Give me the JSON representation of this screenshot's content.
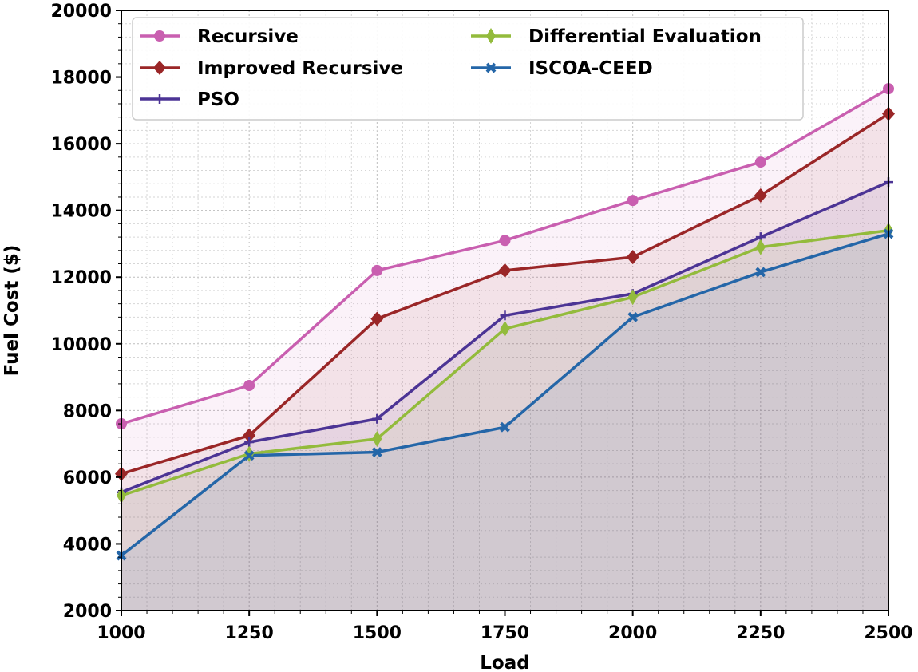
{
  "chart_data": {
    "type": "line",
    "title": "",
    "xlabel": "Load",
    "ylabel": "Fuel Cost ($)",
    "x": [
      1000,
      1250,
      1500,
      1750,
      2000,
      2250,
      2500
    ],
    "xticks": [
      "1000",
      "1250",
      "1500",
      "1750",
      "2000",
      "2250",
      "2500"
    ],
    "yticks": [
      "2000",
      "4000",
      "6000",
      "8000",
      "10000",
      "12000",
      "14000",
      "16000",
      "18000",
      "20000"
    ],
    "xlim": [
      1000,
      2500
    ],
    "ylim": [
      2000,
      20000
    ],
    "grid": true,
    "legend_position": "top-left",
    "series": [
      {
        "name": "Recursive",
        "color": "#c95fb0",
        "marker": "circle",
        "values": [
          7600,
          8750,
          12200,
          13100,
          14300,
          15450,
          17650
        ]
      },
      {
        "name": "Improved Recursive",
        "color": "#9a2627",
        "marker": "diamond",
        "values": [
          6100,
          7250,
          10750,
          12200,
          12600,
          14450,
          16900
        ]
      },
      {
        "name": "PSO",
        "color": "#4c3495",
        "marker": "plus",
        "values": [
          5550,
          7050,
          7750,
          10850,
          11500,
          13200,
          14850
        ]
      },
      {
        "name": "Differential Evaluation",
        "color": "#93bb3c",
        "marker": "thin-diamond",
        "values": [
          5450,
          6700,
          7150,
          10450,
          11400,
          12900,
          13400
        ]
      },
      {
        "name": "ISCOA-CEED",
        "color": "#2466a8",
        "marker": "x",
        "values": [
          3650,
          6650,
          6750,
          7500,
          10800,
          12150,
          13300
        ]
      }
    ]
  }
}
